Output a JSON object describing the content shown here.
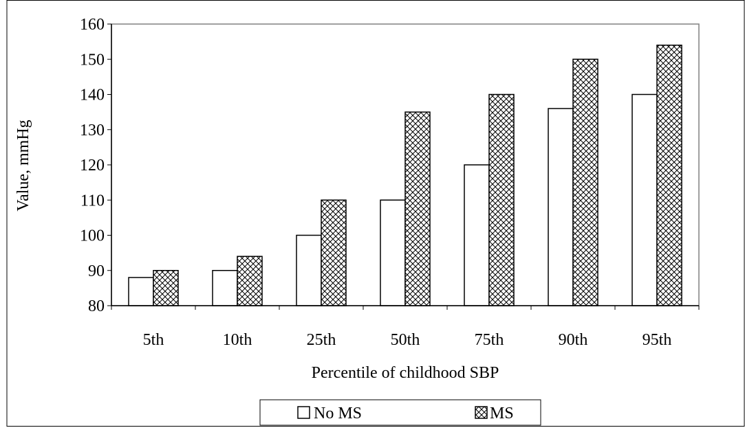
{
  "chart_data": {
    "type": "bar",
    "title": "",
    "xlabel": "Percentile of childhood SBP",
    "ylabel": "Value, mmHg",
    "categories": [
      "5th",
      "10th",
      "25th",
      "50th",
      "75th",
      "90th",
      "95th"
    ],
    "yticks": [
      "80",
      "90",
      "100",
      "110",
      "120",
      "130",
      "140",
      "150",
      "160"
    ],
    "ylim": [
      80,
      160
    ],
    "grid": false,
    "legend_position": "bottom",
    "series": [
      {
        "name": "No MS",
        "values": [
          88,
          90,
          100,
          110,
          120,
          136,
          140
        ],
        "fill": "#ffffff",
        "pattern": "none"
      },
      {
        "name": "MS",
        "values": [
          90,
          94,
          110,
          135,
          140,
          150,
          154
        ],
        "fill": "#ffffff",
        "pattern": "crosshatch"
      }
    ]
  }
}
